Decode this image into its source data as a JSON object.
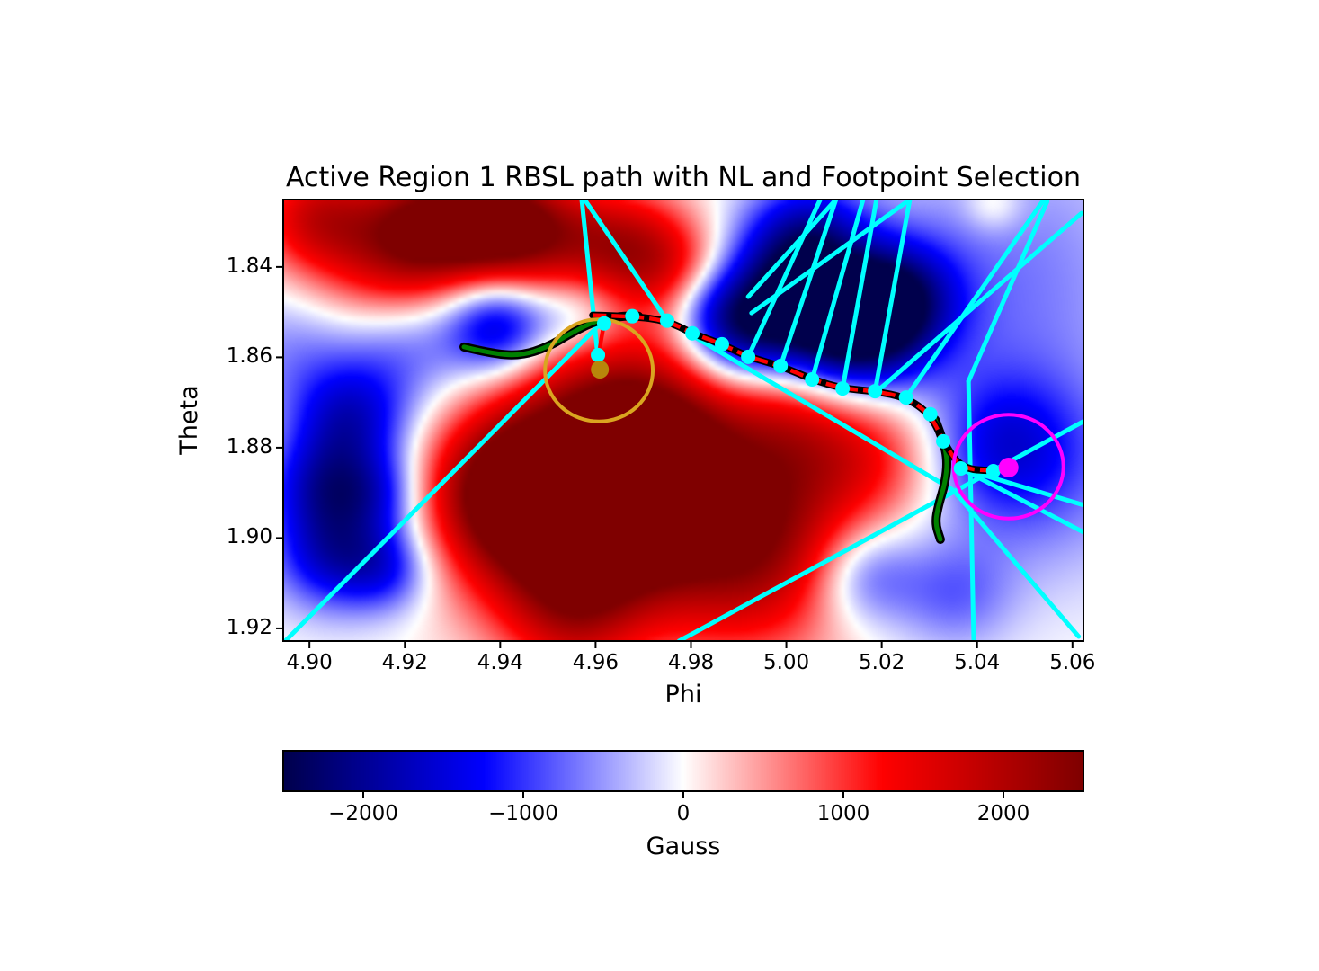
{
  "chart_data": {
    "type": "heatmap",
    "title": "Active Region 1 RBSL path with NL and Footpoint Selection",
    "xlabel": "Phi",
    "ylabel": "Theta",
    "xlim": [
      4.8945,
      5.0623
    ],
    "ylim": [
      1.8251,
      1.9228
    ],
    "y_axis_inverted": true,
    "x_ticks": [
      4.9,
      4.92,
      4.94,
      4.96,
      4.98,
      5.0,
      5.02,
      5.04,
      5.06
    ],
    "x_tick_labels": [
      "4.90",
      "4.92",
      "4.94",
      "4.96",
      "4.98",
      "5.00",
      "5.02",
      "5.04",
      "5.06"
    ],
    "y_ticks": [
      1.84,
      1.86,
      1.88,
      1.9,
      1.92
    ],
    "y_tick_labels": [
      "1.84",
      "1.86",
      "1.88",
      "1.90",
      "1.92"
    ],
    "colormap": "seismic",
    "colorbar": {
      "label": "Gauss",
      "vmin": -2500,
      "vmax": 2500,
      "ticks": [
        -2000,
        -1000,
        0,
        1000,
        2000
      ],
      "tick_labels": [
        "−2000",
        "−1000",
        "0",
        "1000",
        "2000"
      ]
    },
    "magnetogram_blobs": [
      [
        4.9011,
        1.8287,
        0.0087,
        1500
      ],
      [
        4.9143,
        1.8406,
        0.0117,
        1000
      ],
      [
        4.9237,
        1.8316,
        0.0097,
        2000
      ],
      [
        4.9379,
        1.8297,
        0.0087,
        2300
      ],
      [
        4.9501,
        1.8336,
        0.0097,
        1500
      ],
      [
        4.9671,
        1.8362,
        0.0093,
        1700
      ],
      [
        4.9784,
        1.8406,
        0.0078,
        800
      ],
      [
        4.9596,
        1.8695,
        0.0146,
        1600
      ],
      [
        4.9737,
        1.8764,
        0.0117,
        1500
      ],
      [
        5.0029,
        1.8734,
        0.0126,
        1300
      ],
      [
        5.0199,
        1.8814,
        0.0107,
        800
      ],
      [
        4.9539,
        1.8993,
        0.0155,
        2600
      ],
      [
        4.9407,
        1.8884,
        0.0117,
        2000
      ],
      [
        4.9916,
        1.9003,
        0.0165,
        2500
      ],
      [
        4.9671,
        1.8923,
        0.0107,
        1800
      ],
      [
        4.9558,
        1.9182,
        0.0097,
        900
      ],
      [
        5.0434,
        1.8263,
        0.0043,
        500
      ],
      [
        4.92,
        1.8575,
        0.0097,
        -800
      ],
      [
        4.9398,
        1.8535,
        0.0078,
        -1800
      ],
      [
        4.9567,
        1.8502,
        0.0074,
        -1000
      ],
      [
        4.9988,
        1.8466,
        0.0107,
        -2000
      ],
      [
        5.0133,
        1.8549,
        0.0107,
        -2700
      ],
      [
        5.0048,
        1.8322,
        0.0087,
        -1300
      ],
      [
        5.0236,
        1.8466,
        0.0087,
        -1600
      ],
      [
        4.9897,
        1.8565,
        0.0078,
        -1200
      ],
      [
        4.9841,
        1.8486,
        0.0068,
        -700
      ],
      [
        4.9087,
        1.8744,
        0.0087,
        -1500
      ],
      [
        4.9021,
        1.8884,
        0.0078,
        -1300
      ],
      [
        4.9143,
        1.89,
        0.0068,
        -1000
      ],
      [
        4.9049,
        1.9033,
        0.0087,
        -1600
      ],
      [
        4.9166,
        1.9067,
        0.0068,
        -1000
      ],
      [
        4.8974,
        1.8585,
        0.0107,
        -600
      ],
      [
        5.0463,
        1.8406,
        0.0214,
        -650
      ],
      [
        5.0529,
        1.8854,
        0.0175,
        -700
      ],
      [
        5.0161,
        1.9083,
        0.0082,
        -1100
      ],
      [
        5.035,
        1.9127,
        0.0087,
        -700
      ],
      [
        5.0453,
        1.8794,
        0.0107,
        -900
      ]
    ],
    "field_lines": {
      "color": "#00ffff",
      "width": 5,
      "segments": [
        [
          [
            4.8951,
            1.9226
          ],
          [
            4.9618,
            1.8517
          ]
        ],
        [
          [
            4.9571,
            1.8251
          ],
          [
            4.9605,
            1.8601
          ]
        ],
        [
          [
            4.9577,
            1.8251
          ],
          [
            4.975,
            1.8519
          ]
        ],
        [
          [
            5.0071,
            1.8251
          ],
          [
            4.992,
            1.8599
          ]
        ],
        [
          [
            5.0104,
            1.8251
          ],
          [
            4.9988,
            1.8619
          ]
        ],
        [
          [
            5.0161,
            1.8251
          ],
          [
            5.0054,
            1.8649
          ]
        ],
        [
          [
            5.0189,
            1.8251
          ],
          [
            5.0118,
            1.8669
          ]
        ],
        [
          [
            5.0259,
            1.8251
          ],
          [
            5.0186,
            1.8675
          ]
        ],
        [
          [
            5.054,
            1.8251
          ],
          [
            5.0251,
            1.8689
          ]
        ],
        [
          [
            5.0547,
            1.8255
          ],
          [
            5.0382,
            1.8653
          ]
        ],
        [
          [
            5.0619,
            1.8281
          ],
          [
            5.0186,
            1.8679
          ]
        ],
        [
          [
            4.9775,
            1.9228
          ],
          [
            5.0623,
            1.8742
          ]
        ],
        [
          [
            5.035,
            1.8894
          ],
          [
            5.0613,
            1.9218
          ]
        ],
        [
          [
            5.0382,
            1.8653
          ],
          [
            5.0393,
            1.9228
          ]
        ],
        [
          [
            5.0366,
            1.8846
          ],
          [
            5.0623,
            1.8927
          ]
        ],
        [
          [
            5.0366,
            1.8846
          ],
          [
            5.0623,
            1.8987
          ]
        ],
        [
          [
            4.975,
            1.8519
          ],
          [
            5.035,
            1.8894
          ]
        ],
        [
          [
            5.0104,
            1.8251
          ],
          [
            4.992,
            1.8466
          ]
        ],
        [
          [
            4.9927,
            1.8502
          ],
          [
            5.0259,
            1.8251
          ]
        ]
      ]
    },
    "neutral_line": {
      "color": "#008000",
      "outline": "#000000",
      "left": [
        [
          4.9324,
          1.8577
        ],
        [
          4.9379,
          1.8591
        ],
        [
          4.9441,
          1.8597
        ],
        [
          4.9501,
          1.8577
        ],
        [
          4.9554,
          1.8543
        ],
        [
          4.9601,
          1.8519
        ],
        [
          4.9652,
          1.8509
        ],
        [
          4.969,
          1.8509
        ]
      ],
      "right": [
        [
          5.0312,
          1.8738
        ],
        [
          5.0329,
          1.8784
        ],
        [
          5.0338,
          1.8828
        ],
        [
          5.0333,
          1.8878
        ],
        [
          5.0319,
          1.8927
        ],
        [
          5.0312,
          1.8967
        ],
        [
          5.0323,
          1.9003
        ]
      ]
    },
    "rbsl_path": {
      "color": "#ff0000",
      "outline": "#000000",
      "dashed": true,
      "points": [
        [
          4.9594,
          1.8507
        ],
        [
          4.9677,
          1.8509
        ],
        [
          4.975,
          1.8519
        ],
        [
          4.9803,
          1.8547
        ],
        [
          4.9865,
          1.8571
        ],
        [
          4.992,
          1.8599
        ],
        [
          4.9988,
          1.8619
        ],
        [
          5.0054,
          1.8649
        ],
        [
          5.0118,
          1.8669
        ],
        [
          5.0186,
          1.8675
        ],
        [
          5.0251,
          1.8689
        ],
        [
          5.0302,
          1.8726
        ],
        [
          5.0329,
          1.8786
        ],
        [
          5.0366,
          1.8846
        ],
        [
          5.0434,
          1.8852
        ],
        [
          5.0466,
          1.8844
        ]
      ]
    },
    "footpoint_branch": {
      "color": "#ff0000",
      "points": [
        [
          4.9618,
          1.8525
        ],
        [
          4.9605,
          1.8595
        ],
        [
          4.9609,
          1.8627
        ]
      ]
    },
    "path_dots": {
      "color": "#00ffff",
      "radius": 8,
      "points": [
        [
          4.9605,
          1.8595
        ],
        [
          4.9618,
          1.8525
        ],
        [
          4.9677,
          1.8509
        ],
        [
          4.975,
          1.8519
        ],
        [
          4.9803,
          1.8547
        ],
        [
          4.9865,
          1.8571
        ],
        [
          4.992,
          1.8599
        ],
        [
          4.9988,
          1.8619
        ],
        [
          5.0054,
          1.8649
        ],
        [
          5.0118,
          1.8669
        ],
        [
          5.0186,
          1.8675
        ],
        [
          5.0251,
          1.8689
        ],
        [
          5.0302,
          1.8726
        ],
        [
          5.0329,
          1.8786
        ],
        [
          5.0366,
          1.8846
        ],
        [
          5.0434,
          1.8852
        ]
      ]
    },
    "footpoints": {
      "left": {
        "circle_color": "#daa520",
        "dot_color": "#b8860b",
        "center": [
          4.9607,
          1.8629
        ],
        "radius": 0.0113,
        "dot": [
          4.9609,
          1.8627
        ],
        "dot_radius": 10
      },
      "right": {
        "circle_color": "#ff00ff",
        "dot_color": "#ff00ff",
        "center": [
          5.0466,
          1.8842
        ],
        "radius": 0.0115,
        "dot": [
          5.0466,
          1.8844
        ],
        "dot_radius": 11
      }
    }
  }
}
